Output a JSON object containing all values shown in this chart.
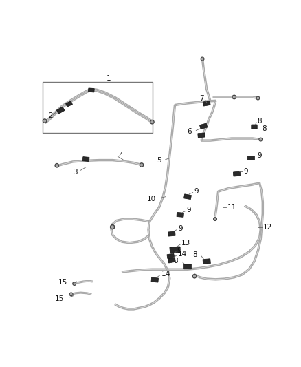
{
  "background_color": "#ffffff",
  "line_color": "#aaaaaa",
  "line_color2": "#888888",
  "figsize": [
    4.38,
    5.33
  ],
  "dpi": 100
}
